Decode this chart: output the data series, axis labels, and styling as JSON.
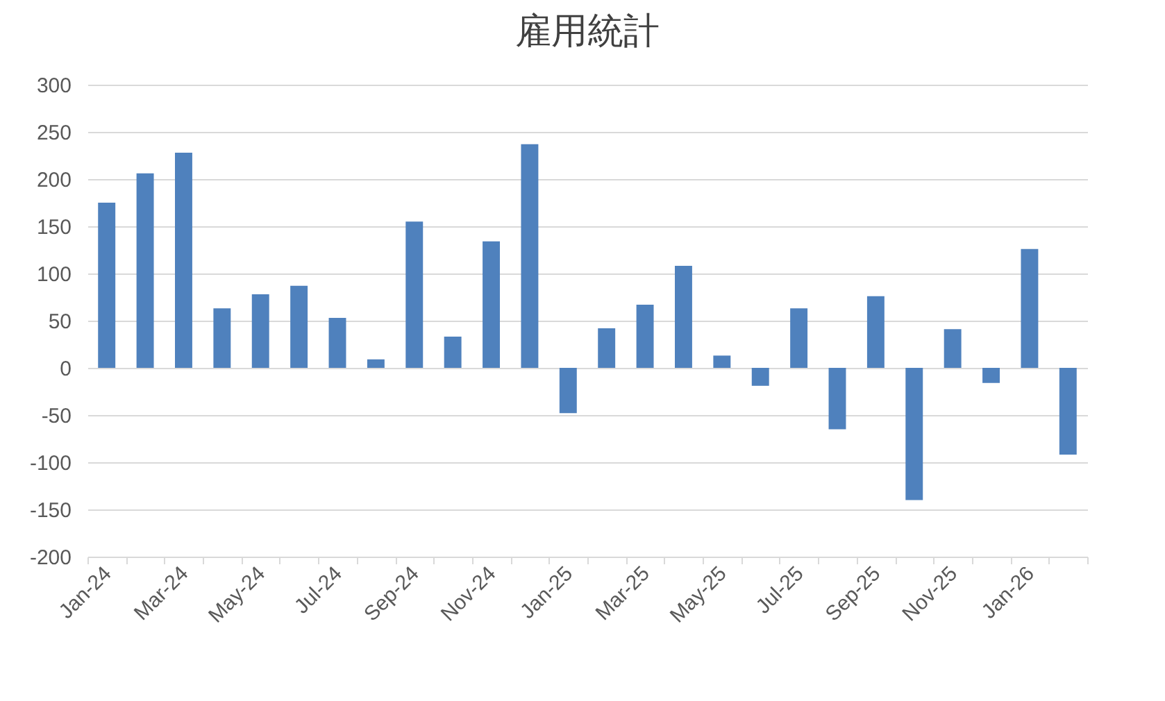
{
  "chart_data": {
    "type": "bar",
    "title": "雇用統計",
    "categories": [
      "Jan-24",
      null,
      "Mar-24",
      null,
      "May-24",
      null,
      "Jul-24",
      null,
      "Sep-24",
      null,
      "Nov-24",
      null,
      "Jan-25",
      null,
      "Mar-25",
      null,
      "May-25",
      null,
      "Jul-25",
      null,
      "Sep-25",
      null,
      "Nov-25",
      null,
      "Jan-26",
      null
    ],
    "values": [
      175,
      206,
      228,
      63,
      78,
      87,
      53,
      9,
      155,
      33,
      134,
      237,
      -48,
      42,
      67,
      108,
      13,
      -19,
      63,
      -65,
      76,
      -140,
      41,
      -16,
      126,
      -92
    ],
    "color": "#4f81bd",
    "ylim": [
      -200,
      300
    ],
    "yticks": [
      -200,
      -150,
      -100,
      -50,
      0,
      50,
      100,
      150,
      200,
      250,
      300
    ],
    "grid": "y"
  }
}
